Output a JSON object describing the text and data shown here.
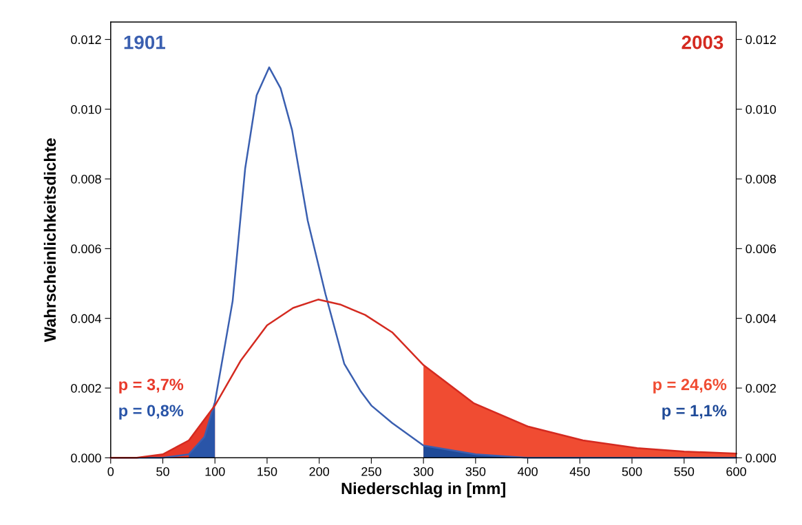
{
  "chart_data": {
    "type": "line",
    "xlabel": "Niederschlag in [mm]",
    "ylabel": "Wahrscheinlichkeitsdichte",
    "xlim": [
      0,
      600
    ],
    "xticks": [
      0,
      50,
      100,
      150,
      200,
      250,
      300,
      350,
      400,
      450,
      500,
      550,
      600
    ],
    "ylim": [
      0,
      0.0125
    ],
    "yticks": [
      {
        "value": 0,
        "label": "0.000"
      },
      {
        "value": 0.002,
        "label": "0.002"
      },
      {
        "value": 0.004,
        "label": "0.004"
      },
      {
        "value": 0.006,
        "label": "0.006"
      },
      {
        "value": 0.008,
        "label": "0.008"
      },
      {
        "value": 0.01,
        "label": "0.010"
      },
      {
        "value": 0.012,
        "label": "0.012"
      }
    ],
    "y2lim": [
      0,
      0.0125
    ],
    "y2ticks": [
      {
        "value": 0,
        "label": "0.000"
      },
      {
        "value": 0.002,
        "label": "0.002"
      },
      {
        "value": 0.004,
        "label": "0.004"
      },
      {
        "value": 0.006,
        "label": "0.006"
      },
      {
        "value": 0.008,
        "label": "0.008"
      },
      {
        "value": 0.01,
        "label": "0.010"
      },
      {
        "value": 0.012,
        "label": "0.012"
      }
    ],
    "grid": false,
    "legend": false,
    "series": [
      {
        "name": "1901",
        "color": "#3a5fb0",
        "x": [
          0,
          50,
          75,
          90,
          100,
          110,
          117,
          129,
          140,
          152,
          163,
          174,
          189,
          206,
          224,
          240,
          250,
          270,
          300,
          350,
          400,
          500,
          600
        ],
        "values": [
          0,
          0,
          0.0001,
          0.0006,
          0.0016,
          0.0033,
          0.0045,
          0.0083,
          0.0104,
          0.0112,
          0.0106,
          0.0094,
          0.0068,
          0.0047,
          0.0027,
          0.0019,
          0.0015,
          0.001,
          0.00035,
          0.0001,
          0,
          0,
          0
        ]
      },
      {
        "name": "2003",
        "color": "#d42a20",
        "x": [
          0,
          25,
          50,
          75,
          90,
          100,
          125,
          150,
          175,
          199,
          220,
          244,
          270,
          300,
          348,
          400,
          453,
          505,
          550,
          600
        ],
        "values": [
          0,
          0,
          0.0001,
          0.0005,
          0.0011,
          0.0015,
          0.0028,
          0.0038,
          0.0043,
          0.00454,
          0.0044,
          0.0041,
          0.0036,
          0.00266,
          0.00157,
          0.0009,
          0.0005,
          0.00028,
          0.00018,
          0.00012
        ]
      },
      {
        "name": "p = 3,7%",
        "type": "area",
        "color": "#e8392a",
        "x": [
          0,
          25,
          50,
          75,
          90,
          100
        ],
        "values": [
          0,
          0,
          0.0001,
          0.0005,
          0.0011,
          0.0015
        ]
      },
      {
        "name": "p = 0,8%",
        "type": "area",
        "color": "#2a55a8",
        "x": [
          75,
          90,
          100
        ],
        "values": [
          0.0001,
          0.0006,
          0.0016
        ]
      },
      {
        "name": "p = 24,6%",
        "type": "area",
        "color": "#f04c32",
        "x": [
          300,
          348,
          400,
          453,
          505,
          550,
          600
        ],
        "values": [
          0.00266,
          0.00157,
          0.0009,
          0.0005,
          0.00028,
          0.00018,
          0.00012
        ]
      },
      {
        "name": "p = 1,1%",
        "type": "area",
        "color": "#1f4a98",
        "x": [
          300,
          350,
          400,
          500,
          600
        ],
        "values": [
          0.00035,
          0.0001,
          0,
          0,
          0
        ]
      }
    ]
  }
}
